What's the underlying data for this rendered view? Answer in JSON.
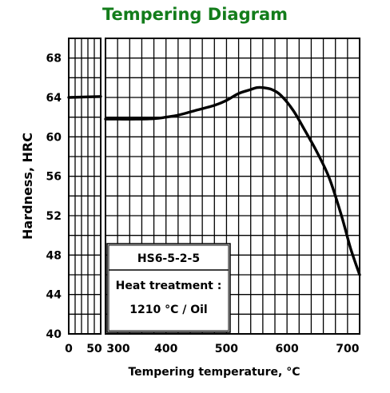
{
  "chart_data": {
    "type": "line",
    "title": "Tempering Diagram",
    "xlabel": "Tempering temperature, °C",
    "ylabel": "Hardness, HRC",
    "ylim": [
      40,
      70
    ],
    "yticks": [
      40,
      44,
      48,
      52,
      56,
      60,
      64,
      68
    ],
    "xticks_left_panel": [
      0,
      50
    ],
    "xticks_right_panel": [
      300,
      400,
      500,
      600,
      700
    ],
    "xlim_left_panel": [
      0,
      50
    ],
    "xlim_right_panel": [
      300,
      720
    ],
    "grid": true,
    "series": [
      {
        "points_left_panel": [
          [
            0,
            64.0
          ],
          [
            50,
            64.1
          ]
        ],
        "points_right_panel": [
          [
            300,
            61.8
          ],
          [
            320,
            61.8
          ],
          [
            350,
            61.8
          ],
          [
            380,
            61.85
          ],
          [
            400,
            62.0
          ],
          [
            420,
            62.2
          ],
          [
            450,
            62.7
          ],
          [
            480,
            63.2
          ],
          [
            500,
            63.7
          ],
          [
            520,
            64.4
          ],
          [
            540,
            64.8
          ],
          [
            550,
            65.0
          ],
          [
            560,
            65.0
          ],
          [
            575,
            64.8
          ],
          [
            590,
            64.2
          ],
          [
            610,
            62.7
          ],
          [
            630,
            60.6
          ],
          [
            650,
            58.4
          ],
          [
            670,
            55.8
          ],
          [
            690,
            52.0
          ],
          [
            705,
            48.7
          ],
          [
            720,
            46.0
          ]
        ]
      }
    ],
    "annotation": {
      "steel": "HS6-5-2-5",
      "treatment_label": "Heat treatment :",
      "treatment_value": "1210 °C / Oil"
    }
  },
  "colors": {
    "title": "#137d1b",
    "line": "#000000",
    "grid": "#000000",
    "background": "#ffffff"
  }
}
